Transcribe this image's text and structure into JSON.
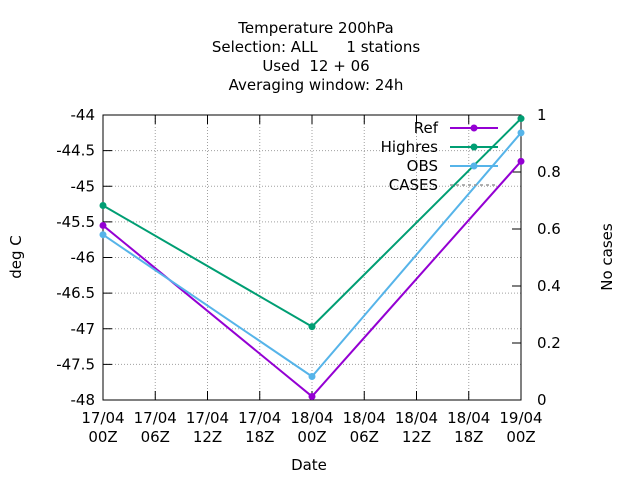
{
  "chart_data": {
    "type": "line",
    "title_lines": [
      "Temperature 200hPa",
      "Selection: ALL      1 stations",
      "Used  12 + 06",
      "Averaging window: 24h"
    ],
    "xlabel": "Date",
    "ylabel": "deg C",
    "y2label": "No cases",
    "x_ticks": [
      {
        "line1": "17/04",
        "line2": "00Z"
      },
      {
        "line1": "17/04",
        "line2": "06Z"
      },
      {
        "line1": "17/04",
        "line2": "12Z"
      },
      {
        "line1": "17/04",
        "line2": "18Z"
      },
      {
        "line1": "18/04",
        "line2": "00Z"
      },
      {
        "line1": "18/04",
        "line2": "06Z"
      },
      {
        "line1": "18/04",
        "line2": "12Z"
      },
      {
        "line1": "18/04",
        "line2": "18Z"
      },
      {
        "line1": "19/04",
        "line2": "00Z"
      }
    ],
    "xlim": [
      0,
      48
    ],
    "ylim": [
      -48,
      -44
    ],
    "y_ticks": [
      "-44",
      "-44.5",
      "-45",
      "-45.5",
      "-46",
      "-46.5",
      "-47",
      "-47.5",
      "-48"
    ],
    "y_tick_values": [
      -44,
      -44.5,
      -45,
      -45.5,
      -46,
      -46.5,
      -47,
      -47.5,
      -48
    ],
    "y2lim": [
      0,
      1
    ],
    "y2_ticks": [
      "1",
      "0.8",
      "0.6",
      "0.4",
      "0.2",
      "0"
    ],
    "y2_tick_values": [
      1,
      0.8,
      0.6,
      0.4,
      0.2,
      0
    ],
    "grid": true,
    "legend_position": "top-right",
    "series": [
      {
        "name": "Ref",
        "color": "#9400d3",
        "marker": "circle",
        "x": [
          0,
          24,
          48
        ],
        "values": [
          -45.55,
          -47.95,
          -44.65
        ]
      },
      {
        "name": "Highres",
        "color": "#009e73",
        "marker": "circle",
        "x": [
          0,
          24,
          48
        ],
        "values": [
          -45.27,
          -46.97,
          -44.05
        ]
      },
      {
        "name": "OBS",
        "color": "#56b4e9",
        "marker": "circle",
        "x": [
          0,
          24,
          48
        ],
        "values": [
          -45.68,
          -47.67,
          -44.25
        ]
      },
      {
        "name": "CASES",
        "color": "#999999",
        "dashed": true,
        "axis": "y2",
        "x": [],
        "values": []
      }
    ]
  }
}
